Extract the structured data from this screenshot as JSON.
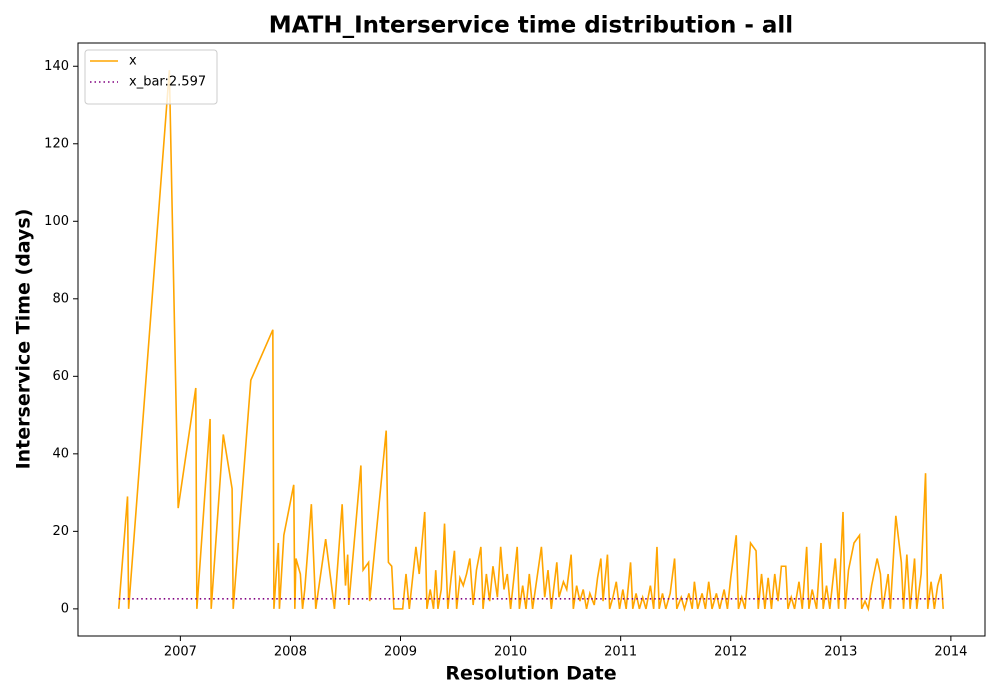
{
  "chart_data": {
    "type": "line",
    "title": "MATH_Interservice time distribution - all",
    "xlabel": "Resolution Date",
    "ylabel": "Interservice Time (days)",
    "xlim": [
      2006.07,
      2014.31
    ],
    "xticks": [
      2007,
      2008,
      2009,
      2010,
      2011,
      2012,
      2013,
      2014
    ],
    "ylim": [
      -7,
      146
    ],
    "yticks": [
      0,
      20,
      40,
      60,
      80,
      100,
      120,
      140
    ],
    "legend": "upper left",
    "series": [
      {
        "name": "x",
        "color": "#ffa500",
        "linestyle": "solid",
        "x": [
          2006.44,
          2006.52,
          2006.53,
          2006.9,
          2006.98,
          2007.14,
          2007.15,
          2007.27,
          2007.28,
          2007.39,
          2007.47,
          2007.48,
          2007.64,
          2007.84,
          2007.85,
          2007.89,
          2007.9,
          2007.94,
          2008.03,
          2008.04,
          2008.05,
          2008.09,
          2008.11,
          2008.13,
          2008.19,
          2008.23,
          2008.32,
          2008.4,
          2008.47,
          2008.5,
          2008.52,
          2008.53,
          2008.64,
          2008.66,
          2008.71,
          2008.72,
          2008.87,
          2008.89,
          2008.92,
          2008.94,
          2009.02,
          2009.05,
          2009.08,
          2009.11,
          2009.14,
          2009.17,
          2009.22,
          2009.24,
          2009.27,
          2009.3,
          2009.32,
          2009.34,
          2009.37,
          2009.4,
          2009.43,
          2009.46,
          2009.49,
          2009.51,
          2009.54,
          2009.57,
          2009.6,
          2009.63,
          2009.66,
          2009.69,
          2009.73,
          2009.75,
          2009.78,
          2009.81,
          2009.84,
          2009.88,
          2009.91,
          2009.94,
          2009.97,
          2010.0,
          2010.03,
          2010.06,
          2010.08,
          2010.11,
          2010.14,
          2010.17,
          2010.2,
          2010.23,
          2010.28,
          2010.31,
          2010.34,
          2010.37,
          2010.42,
          2010.44,
          2010.48,
          2010.51,
          2010.55,
          2010.57,
          2010.6,
          2010.63,
          2010.66,
          2010.69,
          2010.72,
          2010.76,
          2010.79,
          2010.82,
          2010.84,
          2010.88,
          2010.9,
          2010.93,
          2010.96,
          2010.99,
          2011.02,
          2011.05,
          2011.09,
          2011.11,
          2011.14,
          2011.17,
          2011.2,
          2011.23,
          2011.27,
          2011.3,
          2011.33,
          2011.35,
          2011.38,
          2011.41,
          2011.45,
          2011.49,
          2011.51,
          2011.55,
          2011.58,
          2011.62,
          2011.65,
          2011.67,
          2011.7,
          2011.74,
          2011.77,
          2011.8,
          2011.83,
          2011.87,
          2011.9,
          2011.94,
          2011.97,
          2012.0,
          2012.05,
          2012.07,
          2012.1,
          2012.13,
          2012.18,
          2012.23,
          2012.25,
          2012.28,
          2012.31,
          2012.34,
          2012.37,
          2012.4,
          2012.43,
          2012.46,
          2012.5,
          2012.52,
          2012.55,
          2012.58,
          2012.62,
          2012.65,
          2012.69,
          2012.71,
          2012.74,
          2012.78,
          2012.82,
          2012.84,
          2012.87,
          2012.9,
          2012.95,
          2012.98,
          2013.02,
          2013.04,
          2013.07,
          2013.12,
          2013.17,
          2013.19,
          2013.22,
          2013.25,
          2013.28,
          2013.33,
          2013.36,
          2013.38,
          2013.43,
          2013.45,
          2013.5,
          2013.55,
          2013.57,
          2013.6,
          2013.63,
          2013.67,
          2013.69,
          2013.73,
          2013.77,
          2013.79,
          2013.82,
          2013.85,
          2013.88,
          2013.91,
          2013.93
        ],
        "values": [
          0,
          29,
          0,
          139,
          26,
          57,
          0,
          49,
          0,
          45,
          31,
          0,
          59,
          72,
          0,
          17,
          0,
          19,
          32,
          0,
          13,
          9,
          0,
          5,
          27,
          0,
          18,
          0,
          27,
          6,
          14,
          1,
          37,
          10,
          12,
          2,
          46,
          12,
          11,
          0,
          0,
          9,
          0,
          8,
          16,
          9,
          25,
          0,
          5,
          0,
          10,
          0,
          5,
          22,
          0,
          8,
          15,
          0,
          8,
          6,
          9,
          13,
          1,
          10,
          16,
          0,
          9,
          2,
          11,
          3,
          16,
          5,
          9,
          0,
          8,
          16,
          0,
          6,
          0,
          9,
          0,
          6,
          16,
          3,
          10,
          0,
          12,
          3,
          7,
          5,
          14,
          0,
          6,
          2,
          5,
          0,
          4,
          1,
          8,
          13,
          2,
          14,
          0,
          3,
          7,
          0,
          5,
          0,
          12,
          0,
          4,
          0,
          3,
          0,
          6,
          0,
          16,
          0,
          4,
          0,
          4,
          13,
          0,
          3,
          0,
          4,
          0,
          7,
          0,
          4,
          0,
          7,
          0,
          4,
          0,
          5,
          0,
          8,
          19,
          0,
          3,
          0,
          17,
          15,
          0,
          9,
          0,
          8,
          0,
          9,
          2,
          11,
          11,
          0,
          3,
          0,
          7,
          0,
          16,
          0,
          5,
          0,
          17,
          0,
          6,
          0,
          13,
          0,
          25,
          0,
          10,
          17,
          19,
          0,
          2,
          0,
          6,
          13,
          9,
          0,
          9,
          0,
          24,
          12,
          0,
          14,
          0,
          13,
          0,
          9,
          35,
          0,
          7,
          0,
          6,
          9,
          0
        ]
      },
      {
        "name": "x_bar:2.597",
        "color": "#800080",
        "linestyle": "dotted",
        "x": [
          2006.44,
          2013.93
        ],
        "values": [
          2.597,
          2.597
        ]
      }
    ]
  }
}
